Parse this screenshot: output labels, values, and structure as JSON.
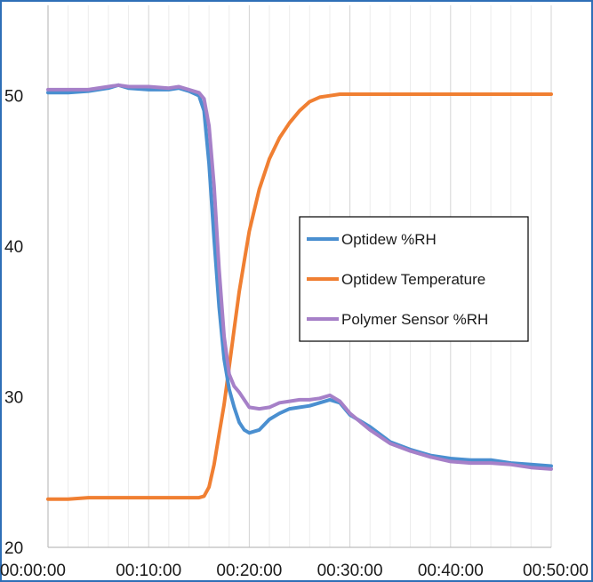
{
  "chart_data": {
    "type": "line",
    "title": "",
    "xlabel": "",
    "ylabel": "",
    "x_tick_labels": [
      "00:00:00",
      "00:10:00",
      "00:20:00",
      "00:30:00",
      "00:40:00",
      "00:50:00"
    ],
    "y_tick_labels": [
      "20",
      "30",
      "40",
      "50"
    ],
    "xlim_minutes": [
      0,
      50
    ],
    "ylim": [
      20,
      56
    ],
    "grid": true,
    "legend_position": "center-right",
    "colors": {
      "Optidew %RH": "#4a8fd0",
      "Optidew Temperature": "#f07f32",
      "Polymer Sensor %RH": "#a680c8"
    },
    "series": [
      {
        "name": "Optidew %RH",
        "x": [
          0,
          2,
          4,
          6,
          7,
          8,
          10,
          12,
          13,
          14,
          15,
          15.5,
          16,
          16.5,
          17,
          17.5,
          18,
          18.5,
          19,
          19.5,
          20,
          21,
          22,
          23,
          24,
          25,
          26,
          27,
          28,
          29,
          30,
          32,
          34,
          36,
          38,
          40,
          42,
          44,
          46,
          48,
          50
        ],
        "y": [
          50.2,
          50.2,
          50.3,
          50.5,
          50.7,
          50.5,
          50.4,
          50.4,
          50.5,
          50.3,
          50.0,
          49.0,
          45.5,
          40.5,
          36.0,
          32.5,
          30.5,
          29.3,
          28.3,
          27.8,
          27.6,
          27.8,
          28.5,
          28.9,
          29.2,
          29.3,
          29.4,
          29.6,
          29.8,
          29.6,
          28.8,
          28.0,
          27.0,
          26.5,
          26.1,
          25.9,
          25.8,
          25.8,
          25.6,
          25.5,
          25.4
        ]
      },
      {
        "name": "Optidew Temperature",
        "x": [
          0,
          2,
          4,
          6,
          8,
          10,
          12,
          14,
          15,
          15.5,
          16,
          16.5,
          17,
          17.5,
          18,
          18.5,
          19,
          19.5,
          20,
          21,
          22,
          23,
          24,
          25,
          26,
          27,
          28,
          29,
          30,
          32,
          35,
          40,
          45,
          50
        ],
        "y": [
          23.2,
          23.2,
          23.3,
          23.3,
          23.3,
          23.3,
          23.3,
          23.3,
          23.3,
          23.4,
          24.0,
          25.5,
          27.5,
          29.5,
          32.0,
          34.5,
          37.0,
          39.0,
          41.0,
          43.8,
          45.8,
          47.2,
          48.2,
          49.0,
          49.6,
          49.9,
          50.0,
          50.1,
          50.1,
          50.1,
          50.1,
          50.1,
          50.1,
          50.1
        ]
      },
      {
        "name": "Polymer Sensor %RH",
        "x": [
          0,
          2,
          4,
          6,
          7,
          8,
          10,
          12,
          13,
          14,
          15,
          15.5,
          16,
          16.5,
          17,
          17.5,
          18,
          18.5,
          19,
          19.5,
          20,
          21,
          22,
          23,
          24,
          25,
          26,
          27,
          28,
          29,
          30,
          32,
          34,
          36,
          38,
          40,
          42,
          44,
          46,
          48,
          50
        ],
        "y": [
          50.4,
          50.4,
          50.4,
          50.6,
          50.7,
          50.6,
          50.6,
          50.5,
          50.6,
          50.4,
          50.2,
          49.8,
          48.0,
          44.0,
          38.5,
          34.0,
          31.5,
          30.7,
          30.3,
          29.8,
          29.3,
          29.2,
          29.3,
          29.6,
          29.7,
          29.8,
          29.8,
          29.9,
          30.1,
          29.7,
          28.9,
          27.8,
          26.9,
          26.4,
          26.0,
          25.7,
          25.6,
          25.6,
          25.5,
          25.3,
          25.2
        ]
      }
    ]
  }
}
